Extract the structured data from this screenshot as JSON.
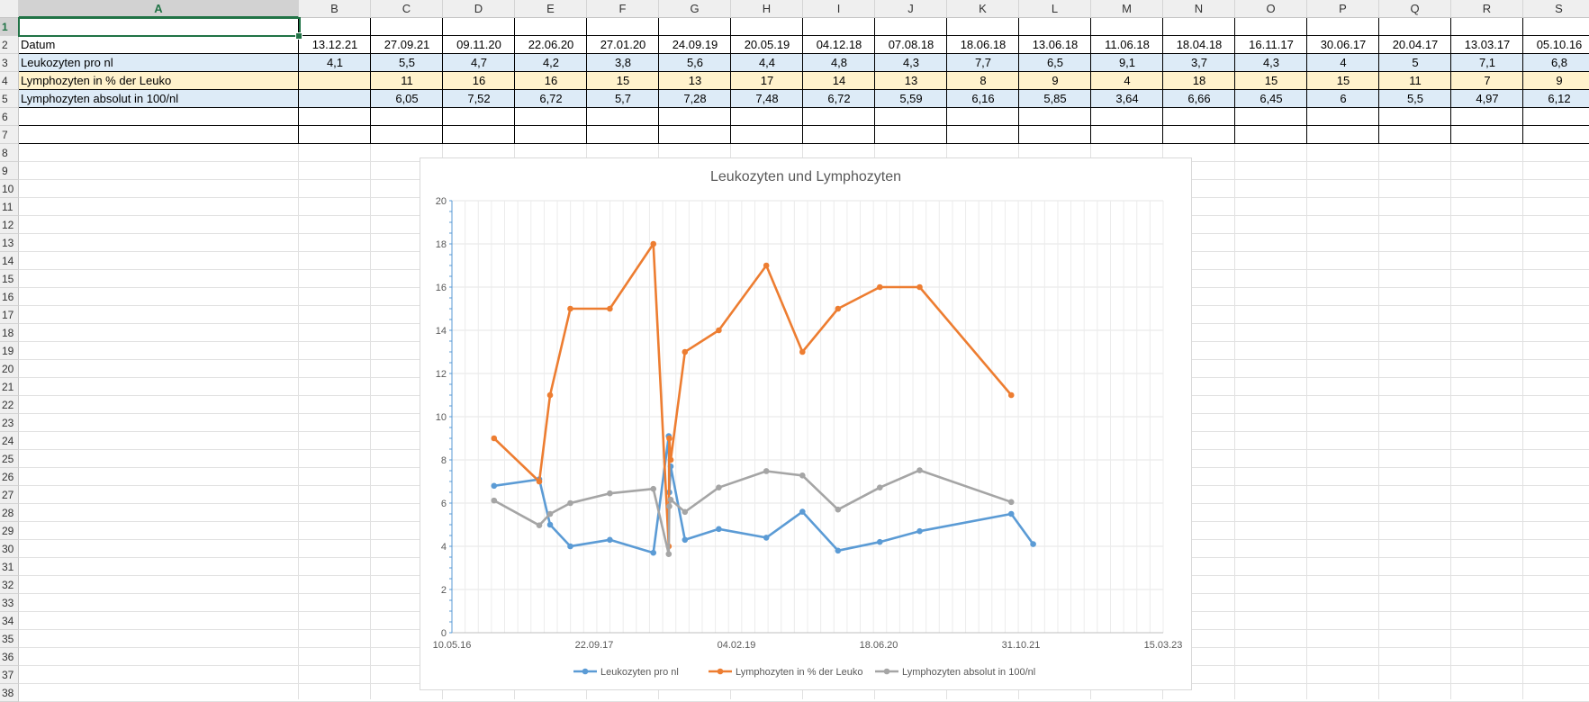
{
  "columns": [
    "A",
    "B",
    "C",
    "D",
    "E",
    "F",
    "G",
    "H",
    "I",
    "J",
    "K",
    "L",
    "M",
    "N",
    "O",
    "P",
    "Q",
    "R",
    "S"
  ],
  "rows": [
    "1",
    "2",
    "3",
    "4",
    "5",
    "6",
    "7",
    "8",
    "9",
    "10",
    "11",
    "12",
    "13",
    "14",
    "15",
    "16",
    "17",
    "18",
    "19",
    "20",
    "21",
    "22",
    "23",
    "24",
    "25",
    "26",
    "27",
    "28",
    "29",
    "30",
    "31",
    "32",
    "33",
    "34",
    "35",
    "36",
    "37",
    "38"
  ],
  "table": {
    "row2": {
      "label": "Datum",
      "values": [
        "13.12.21",
        "27.09.21",
        "09.11.20",
        "22.06.20",
        "27.01.20",
        "24.09.19",
        "20.05.19",
        "04.12.18",
        "07.08.18",
        "18.06.18",
        "13.06.18",
        "11.06.18",
        "18.04.18",
        "16.11.17",
        "30.06.17",
        "20.04.17",
        "13.03.17",
        "05.10.16"
      ],
      "color": "#ffffff"
    },
    "row3": {
      "label": "Leukozyten pro nl",
      "values": [
        "4,1",
        "5,5",
        "4,7",
        "4,2",
        "3,8",
        "5,6",
        "4,4",
        "4,8",
        "4,3",
        "7,7",
        "6,5",
        "9,1",
        "3,7",
        "4,3",
        "4",
        "5",
        "7,1",
        "6,8"
      ],
      "color": "#ddebf7"
    },
    "row4": {
      "label": "Lymphozyten in % der Leuko",
      "values": [
        "",
        "11",
        "16",
        "16",
        "15",
        "13",
        "17",
        "14",
        "13",
        "8",
        "9",
        "4",
        "18",
        "15",
        "15",
        "11",
        "7",
        "9"
      ],
      "color": "#fff2cc"
    },
    "row5": {
      "label": "Lymphozyten absolut in 100/nl",
      "values": [
        "",
        "6,05",
        "7,52",
        "6,72",
        "5,7",
        "7,28",
        "7,48",
        "6,72",
        "5,59",
        "6,16",
        "5,85",
        "3,64",
        "6,66",
        "6,45",
        "6",
        "5,5",
        "4,97",
        "6,12"
      ],
      "color": "#ddebf7"
    }
  },
  "chart_data": {
    "type": "line",
    "title": "Leukozyten und Lymphozyten",
    "x_tick_labels": [
      "10.05.16",
      "22.09.17",
      "04.02.19",
      "18.06.20",
      "31.10.21",
      "15.03.23"
    ],
    "xlim": [
      "10.05.16",
      "15.03.23"
    ],
    "ylim": [
      0,
      20
    ],
    "y_ticks": [
      0,
      2,
      4,
      6,
      8,
      10,
      12,
      14,
      16,
      18,
      20
    ],
    "legend_position": "bottom",
    "x": [
      "13.12.21",
      "27.09.21",
      "09.11.20",
      "22.06.20",
      "27.01.20",
      "24.09.19",
      "20.05.19",
      "04.12.18",
      "07.08.18",
      "18.06.18",
      "13.06.18",
      "11.06.18",
      "18.04.18",
      "16.11.17",
      "30.06.17",
      "20.04.17",
      "13.03.17",
      "05.10.16"
    ],
    "series": [
      {
        "name": "Leukozyten pro nl",
        "color": "#5b9bd5",
        "values": [
          4.1,
          5.5,
          4.7,
          4.2,
          3.8,
          5.6,
          4.4,
          4.8,
          4.3,
          7.7,
          6.5,
          9.1,
          3.7,
          4.3,
          4,
          5,
          7.1,
          6.8
        ]
      },
      {
        "name": "Lymphozyten in % der Leuko",
        "color": "#ed7d31",
        "values": [
          null,
          11,
          16,
          16,
          15,
          13,
          17,
          14,
          13,
          8,
          9,
          4,
          18,
          15,
          15,
          11,
          7,
          9
        ]
      },
      {
        "name": "Lymphozyten absolut in 100/nl",
        "color": "#a5a5a5",
        "values": [
          null,
          6.05,
          7.52,
          6.72,
          5.7,
          7.28,
          7.48,
          6.72,
          5.59,
          6.16,
          5.85,
          3.64,
          6.66,
          6.45,
          6,
          5.5,
          4.97,
          6.12
        ]
      }
    ]
  }
}
